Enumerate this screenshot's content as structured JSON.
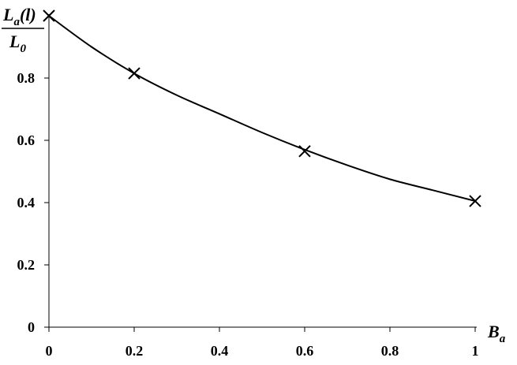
{
  "chart_data": {
    "type": "line",
    "title": "",
    "xlabel": {
      "main": "B",
      "sub": "a"
    },
    "ylabel": {
      "numerator": {
        "main": "L",
        "sub": "a",
        "suffix": "(l)"
      },
      "denominator": {
        "main": "L",
        "sub": "0"
      }
    },
    "xlim": [
      0,
      1
    ],
    "ylim": [
      0,
      1
    ],
    "x_ticks": [
      "0",
      "0.2",
      "0.4",
      "0.6",
      "0.8",
      "1"
    ],
    "y_ticks": [
      "0",
      "0.2",
      "0.4",
      "0.6",
      "0.8"
    ],
    "grid": false,
    "legend": "none",
    "series": [
      {
        "style": "curve",
        "color": "#000000",
        "x": [
          0,
          0.1,
          0.2,
          0.3,
          0.4,
          0.5,
          0.6,
          0.7,
          0.8,
          0.9,
          1.0
        ],
        "y": [
          1.0,
          0.9,
          0.815,
          0.745,
          0.685,
          0.625,
          0.57,
          0.52,
          0.475,
          0.44,
          0.405
        ]
      },
      {
        "style": "markers",
        "marker": "x",
        "color": "#000000",
        "x": [
          0,
          0.2,
          0.6,
          1.0
        ],
        "y": [
          1.0,
          0.815,
          0.565,
          0.405
        ]
      }
    ]
  }
}
